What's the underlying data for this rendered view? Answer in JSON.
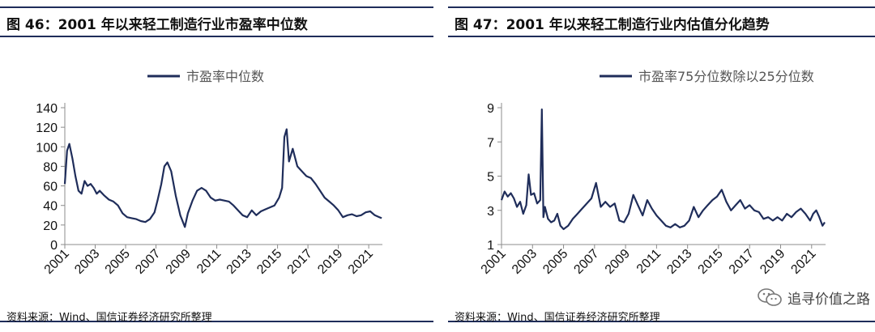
{
  "panels": [
    {
      "title": "图 46：2001 年以来轻工制造行业市盈率中位数",
      "source": "资料来源：Wind、国信证券经济研究所整理"
    },
    {
      "title": "图 47：2001 年以来轻工制造行业内估值分化趋势",
      "source": "资料来源：Wind、国信证券经济研究所整理"
    }
  ],
  "watermark": {
    "text": "追寻价值之路",
    "icon": "wechat-icon"
  },
  "colors": {
    "line": "#1f2d5a",
    "axis": "#8c8c8c"
  },
  "chart_data": [
    {
      "type": "line",
      "title": "",
      "xlabel": "",
      "ylabel": "",
      "xlim": [
        2001.0,
        2021.9
      ],
      "ylim": [
        0,
        140
      ],
      "yticks": [
        "0",
        "20",
        "40",
        "60",
        "80",
        "100",
        "120",
        "140"
      ],
      "xticks": [
        "2001",
        "2003",
        "2005",
        "2007",
        "2009",
        "2011",
        "2013",
        "2015",
        "2017",
        "2019",
        "2021"
      ],
      "legend": "top-center",
      "grid": false,
      "series": [
        {
          "name": "市盈率中位数",
          "x": [
            2001.0,
            2001.15,
            2001.3,
            2001.5,
            2001.7,
            2001.9,
            2002.1,
            2002.3,
            2002.5,
            2002.7,
            2002.9,
            2003.1,
            2003.3,
            2003.6,
            2003.9,
            2004.2,
            2004.5,
            2004.8,
            2005.1,
            2005.4,
            2005.7,
            2006.0,
            2006.3,
            2006.6,
            2006.9,
            2007.1,
            2007.35,
            2007.55,
            2007.75,
            2008.0,
            2008.3,
            2008.6,
            2008.9,
            2009.1,
            2009.4,
            2009.7,
            2010.0,
            2010.3,
            2010.6,
            2010.9,
            2011.2,
            2011.5,
            2011.8,
            2012.1,
            2012.4,
            2012.7,
            2013.0,
            2013.3,
            2013.6,
            2013.9,
            2014.2,
            2014.5,
            2014.8,
            2015.1,
            2015.3,
            2015.45,
            2015.6,
            2015.75,
            2016.0,
            2016.3,
            2016.6,
            2016.9,
            2017.2,
            2017.5,
            2017.8,
            2018.1,
            2018.4,
            2018.7,
            2019.0,
            2019.3,
            2019.6,
            2019.9,
            2020.2,
            2020.5,
            2020.8,
            2021.1,
            2021.4,
            2021.7,
            2021.85
          ],
          "values": [
            62,
            96,
            103,
            88,
            70,
            55,
            52,
            65,
            60,
            62,
            58,
            52,
            55,
            50,
            46,
            44,
            40,
            32,
            28,
            27,
            26,
            24,
            23,
            26,
            33,
            45,
            62,
            80,
            84,
            75,
            50,
            30,
            18,
            32,
            45,
            55,
            58,
            55,
            48,
            45,
            46,
            45,
            44,
            40,
            35,
            30,
            28,
            35,
            30,
            34,
            36,
            38,
            40,
            48,
            58,
            110,
            118,
            85,
            98,
            80,
            75,
            70,
            68,
            62,
            55,
            48,
            44,
            40,
            35,
            28,
            30,
            31,
            29,
            30,
            33,
            34,
            30,
            28,
            27
          ]
        }
      ]
    },
    {
      "type": "line",
      "title": "",
      "xlabel": "",
      "ylabel": "",
      "xlim": [
        2001.0,
        2021.9
      ],
      "ylim": [
        1,
        9
      ],
      "yticks": [
        "1",
        "3",
        "5",
        "7",
        "9"
      ],
      "xticks": [
        "2001",
        "2003",
        "2005",
        "2007",
        "2009",
        "2011",
        "2013",
        "2015",
        "2017",
        "2019",
        "2021"
      ],
      "legend": "top-center",
      "grid": false,
      "series": [
        {
          "name": "市盈率75分位数除以25分位数",
          "x": [
            2001.0,
            2001.2,
            2001.4,
            2001.6,
            2001.8,
            2002.0,
            2002.2,
            2002.4,
            2002.6,
            2002.75,
            2002.9,
            2003.1,
            2003.3,
            2003.5,
            2003.6,
            2003.7,
            2003.8,
            2004.0,
            2004.2,
            2004.4,
            2004.6,
            2004.8,
            2005.0,
            2005.3,
            2005.6,
            2005.9,
            2006.2,
            2006.5,
            2006.8,
            2007.1,
            2007.4,
            2007.7,
            2008.0,
            2008.3,
            2008.6,
            2008.9,
            2009.2,
            2009.5,
            2009.8,
            2010.1,
            2010.4,
            2010.7,
            2011.0,
            2011.3,
            2011.6,
            2011.9,
            2012.2,
            2012.5,
            2012.8,
            2013.1,
            2013.4,
            2013.7,
            2014.0,
            2014.3,
            2014.6,
            2014.9,
            2015.2,
            2015.5,
            2015.8,
            2016.1,
            2016.4,
            2016.7,
            2017.0,
            2017.3,
            2017.6,
            2017.9,
            2018.2,
            2018.5,
            2018.8,
            2019.1,
            2019.4,
            2019.7,
            2020.0,
            2020.3,
            2020.6,
            2020.9,
            2021.1,
            2021.3,
            2021.5,
            2021.7,
            2021.85
          ],
          "values": [
            3.6,
            4.1,
            3.8,
            4.0,
            3.7,
            3.2,
            3.5,
            2.8,
            3.3,
            5.1,
            3.9,
            4.0,
            3.4,
            3.6,
            8.9,
            2.6,
            3.2,
            2.5,
            2.3,
            2.4,
            2.8,
            2.1,
            1.9,
            2.1,
            2.5,
            2.8,
            3.1,
            3.4,
            3.7,
            4.6,
            3.2,
            3.5,
            3.2,
            3.4,
            2.4,
            2.3,
            2.8,
            3.9,
            3.3,
            2.7,
            3.6,
            3.1,
            2.7,
            2.4,
            2.1,
            2.0,
            2.2,
            2.0,
            2.1,
            2.4,
            3.2,
            2.6,
            3.0,
            3.3,
            3.6,
            3.8,
            4.2,
            3.5,
            3.0,
            3.3,
            3.6,
            3.1,
            3.3,
            3.0,
            2.9,
            2.5,
            2.6,
            2.4,
            2.6,
            2.4,
            2.8,
            2.6,
            2.9,
            3.1,
            2.8,
            2.4,
            2.8,
            3.0,
            2.6,
            2.1,
            2.3
          ]
        }
      ]
    }
  ]
}
